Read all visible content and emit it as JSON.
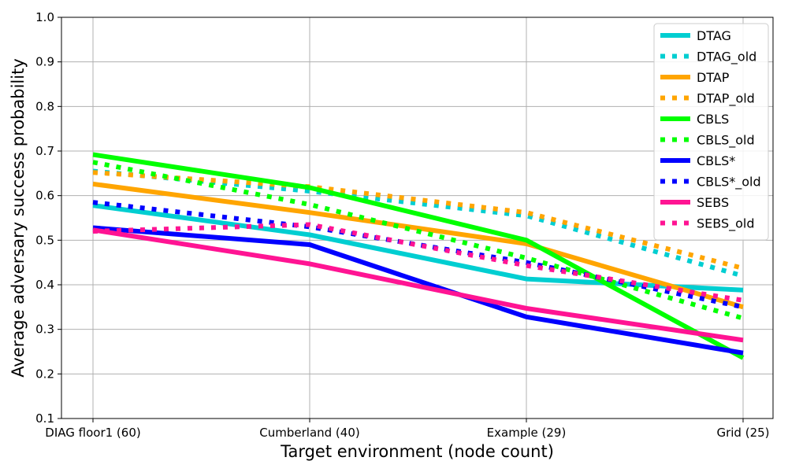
{
  "chart_data": {
    "type": "line",
    "title": "",
    "xlabel": "Target environment (node count)",
    "ylabel": "Average adversary success probability",
    "categories": [
      "DIAG floor1 (60)",
      "Cumberland (40)",
      "Example (29)",
      "Grid (25)"
    ],
    "ylim": [
      0.1,
      1.0
    ],
    "yticks": [
      "0.1",
      "0.2",
      "0.3",
      "0.4",
      "0.5",
      "0.6",
      "0.7",
      "0.8",
      "0.9",
      "1.0"
    ],
    "grid": true,
    "legend_position": "top-right",
    "series": [
      {
        "name": "DTAG",
        "style": "solid",
        "color": "#00ced1",
        "values": [
          0.578,
          0.512,
          0.413,
          0.388
        ]
      },
      {
        "name": "DTAG_old",
        "style": "dotted",
        "color": "#00ced1",
        "values": [
          0.655,
          0.61,
          0.555,
          0.42
        ]
      },
      {
        "name": "DTAP",
        "style": "solid",
        "color": "#ffa500",
        "values": [
          0.626,
          0.562,
          0.492,
          0.35
        ]
      },
      {
        "name": "DTAP_old",
        "style": "dotted",
        "color": "#ffa500",
        "values": [
          0.652,
          0.62,
          0.562,
          0.437
        ]
      },
      {
        "name": "CBLS",
        "style": "solid",
        "color": "#00ff00",
        "values": [
          0.692,
          0.618,
          0.5,
          0.236
        ]
      },
      {
        "name": "CBLS_old",
        "style": "dotted",
        "color": "#00ff00",
        "values": [
          0.675,
          0.58,
          0.46,
          0.325
        ]
      },
      {
        "name": "CBLS*",
        "style": "solid",
        "color": "#0000ff",
        "values": [
          0.528,
          0.49,
          0.328,
          0.247
        ]
      },
      {
        "name": "CBLS*_old",
        "style": "dotted",
        "color": "#0000ff",
        "values": [
          0.585,
          0.53,
          0.45,
          0.35
        ]
      },
      {
        "name": "SEBS",
        "style": "solid",
        "color": "#ff1493",
        "values": [
          0.523,
          0.447,
          0.347,
          0.276
        ]
      },
      {
        "name": "SEBS_old",
        "style": "dotted",
        "color": "#ff1493",
        "values": [
          0.52,
          0.535,
          0.443,
          0.365
        ]
      }
    ]
  }
}
